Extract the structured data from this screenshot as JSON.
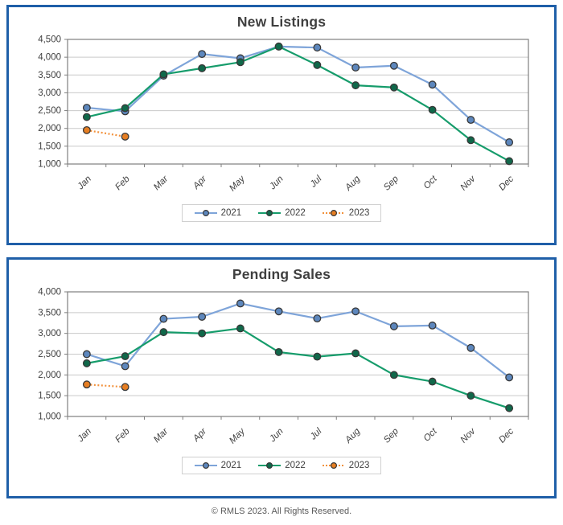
{
  "footer": {
    "copyright": "© RMLS 2023. All Rights Reserved."
  },
  "colors": {
    "panel_border": "#1f5fa8",
    "plot_border": "#7f7f7f",
    "gridline": "#c9c9c9",
    "axis_text": "#3f3f3f",
    "title_text": "#3f3f3f",
    "marker_outline": "#383838",
    "legend_border": "#d0d0d0"
  },
  "chart_data": [
    {
      "type": "line",
      "title": "New Listings",
      "categories": [
        "Jan",
        "Feb",
        "Mar",
        "Apr",
        "May",
        "Jun",
        "Jul",
        "Aug",
        "Sep",
        "Oct",
        "Nov",
        "Dec"
      ],
      "xlabel": "",
      "ylabel": "",
      "ylim": [
        1000,
        4500
      ],
      "ytick_step": 500,
      "ytick_labels": [
        "1,000",
        "1,500",
        "2,000",
        "2,500",
        "3,000",
        "3,500",
        "4,000",
        "4,500"
      ],
      "grid": true,
      "legend_position": "bottom",
      "series": [
        {
          "name": "2021",
          "line_color": "#7ea4d9",
          "marker_color": "#5d87bd",
          "dashed": false,
          "values": [
            2580,
            2480,
            3480,
            4090,
            3970,
            4300,
            4270,
            3710,
            3760,
            3230,
            2240,
            1610
          ]
        },
        {
          "name": "2022",
          "line_color": "#169c6b",
          "marker_color": "#10684a",
          "dashed": false,
          "values": [
            2320,
            2570,
            3520,
            3690,
            3860,
            4300,
            3780,
            3210,
            3150,
            2520,
            1670,
            1080
          ]
        },
        {
          "name": "2023",
          "line_color": "#f2923d",
          "marker_color": "#e67e22",
          "dashed": true,
          "values": [
            1950,
            1770,
            null,
            null,
            null,
            null,
            null,
            null,
            null,
            null,
            null,
            null
          ]
        }
      ]
    },
    {
      "type": "line",
      "title": "Pending Sales",
      "categories": [
        "Jan",
        "Feb",
        "Mar",
        "Apr",
        "May",
        "Jun",
        "Jul",
        "Aug",
        "Sep",
        "Oct",
        "Nov",
        "Dec"
      ],
      "xlabel": "",
      "ylabel": "",
      "ylim": [
        1000,
        4000
      ],
      "ytick_step": 500,
      "ytick_labels": [
        "1,000",
        "1,500",
        "2,000",
        "2,500",
        "3,000",
        "3,500",
        "4,000"
      ],
      "grid": true,
      "legend_position": "bottom",
      "series": [
        {
          "name": "2021",
          "line_color": "#7ea4d9",
          "marker_color": "#5d87bd",
          "dashed": false,
          "values": [
            2500,
            2210,
            3350,
            3400,
            3720,
            3530,
            3360,
            3530,
            3170,
            3190,
            2650,
            1940
          ]
        },
        {
          "name": "2022",
          "line_color": "#169c6b",
          "marker_color": "#10684a",
          "dashed": false,
          "values": [
            2280,
            2450,
            3030,
            3000,
            3120,
            2550,
            2440,
            2520,
            2000,
            1840,
            1500,
            1200
          ]
        },
        {
          "name": "2023",
          "line_color": "#f2923d",
          "marker_color": "#e67e22",
          "dashed": true,
          "values": [
            1770,
            1710,
            null,
            null,
            null,
            null,
            null,
            null,
            null,
            null,
            null,
            null
          ]
        }
      ]
    }
  ]
}
